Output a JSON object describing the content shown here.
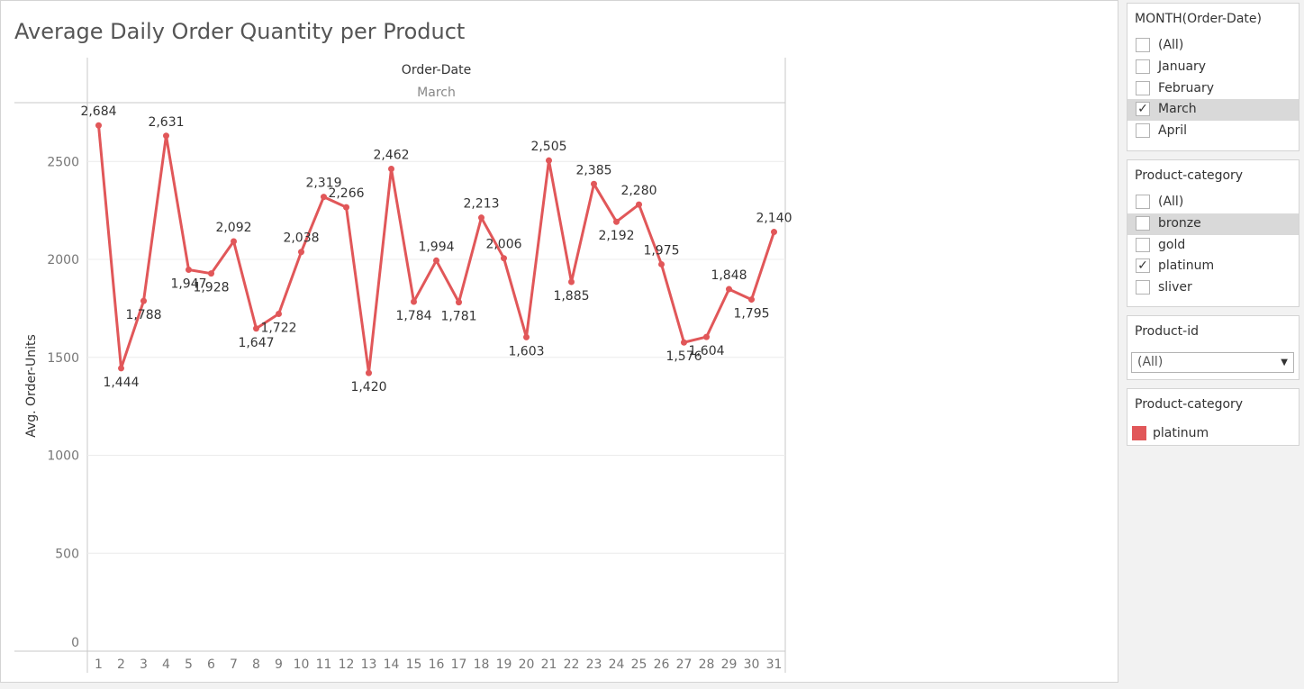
{
  "worksheet": {
    "title": "Average Daily Order Quantity per Product"
  },
  "chart_data": {
    "type": "line",
    "title": "Average Daily Order Quantity per Product",
    "column_header": "Order-Date",
    "column_value": "March",
    "ylabel": "Avg. Order-Units",
    "ylim": [
      0,
      2800
    ],
    "yticks": [
      0,
      500,
      1000,
      1500,
      2000,
      2500
    ],
    "grid": true,
    "color": "#e15759",
    "x": [
      1,
      2,
      3,
      4,
      5,
      6,
      7,
      8,
      9,
      10,
      11,
      12,
      13,
      14,
      15,
      16,
      17,
      18,
      19,
      20,
      21,
      22,
      23,
      24,
      25,
      26,
      27,
      28,
      29,
      30,
      31
    ],
    "series": [
      {
        "values": [
          2684,
          1444,
          1788,
          2631,
          1947,
          1928,
          2092,
          1647,
          1722,
          2038,
          2319,
          2266,
          1420,
          2462,
          1784,
          1994,
          1781,
          2213,
          2006,
          1603,
          2505,
          1885,
          2385,
          2192,
          2280,
          1975,
          1576,
          1604,
          1848,
          1795,
          2140
        ]
      }
    ],
    "data_labels": [
      "2,684",
      "1,444",
      "1,788",
      "2,631",
      "1,947",
      "1,928",
      "2,092",
      "1,647",
      "1,722",
      "2,038",
      "2,319",
      "2,266",
      "1,420",
      "2,462",
      "1,784",
      "1,994",
      "1,781",
      "2,213",
      "2,006",
      "1,603",
      "2,505",
      "1,885",
      "2,385",
      "2,192",
      "2,280",
      "1,975",
      "1,576",
      "1,604",
      "1,848",
      "1,795",
      "2,140"
    ]
  },
  "filters": [
    {
      "title": "MONTH(Order-Date)",
      "options": [
        {
          "label": "(All)",
          "checked": false,
          "highlighted": false
        },
        {
          "label": "January",
          "checked": false,
          "highlighted": false
        },
        {
          "label": "February",
          "checked": false,
          "highlighted": false
        },
        {
          "label": "March",
          "checked": true,
          "highlighted": true
        },
        {
          "label": "April",
          "checked": false,
          "highlighted": false
        }
      ]
    },
    {
      "title": "Product-category",
      "options": [
        {
          "label": "(All)",
          "checked": false,
          "highlighted": false
        },
        {
          "label": "bronze",
          "checked": false,
          "highlighted": true
        },
        {
          "label": "gold",
          "checked": false,
          "highlighted": false
        },
        {
          "label": "platinum",
          "checked": true,
          "highlighted": false
        },
        {
          "label": "sliver",
          "checked": false,
          "highlighted": false
        }
      ]
    }
  ],
  "product_id_filter": {
    "title": "Product-id",
    "value": "(All)"
  },
  "legend": {
    "title": "Product-category",
    "items": [
      {
        "label": "platinum",
        "color": "#e15759"
      }
    ]
  },
  "icons": {
    "checkmark": "checkmark-icon",
    "dropdown": "chevron-down-icon"
  }
}
